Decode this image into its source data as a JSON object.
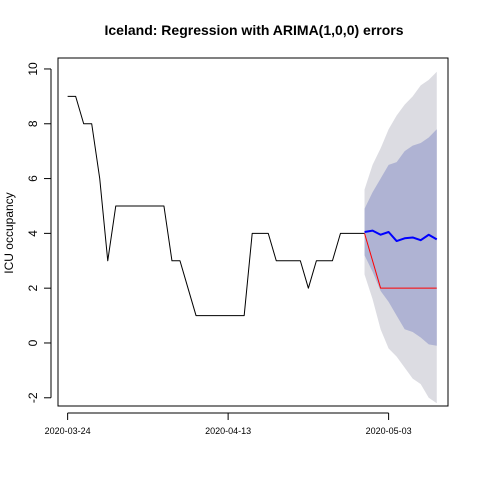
{
  "chart_data": {
    "type": "line",
    "title": "Iceland: Regression with ARIMA(1,0,0) errors",
    "xlabel": "",
    "ylabel": "ICU occupancy",
    "ylim": [
      -2.3,
      10.4
    ],
    "yticks": [
      -2,
      0,
      2,
      4,
      6,
      8,
      10
    ],
    "xlim": [
      "2020-03-24",
      "2020-05-09"
    ],
    "xtick_labels": [
      "2020-03-24",
      "2020-04-13",
      "2020-05-03"
    ],
    "grid": false,
    "legend": "none",
    "series": [
      {
        "role": "observed",
        "color": "#000000",
        "x": [
          "2020-03-24",
          "2020-03-25",
          "2020-03-26",
          "2020-03-27",
          "2020-03-28",
          "2020-03-29",
          "2020-03-30",
          "2020-03-31",
          "2020-04-01",
          "2020-04-02",
          "2020-04-03",
          "2020-04-04",
          "2020-04-05",
          "2020-04-06",
          "2020-04-07",
          "2020-04-08",
          "2020-04-09",
          "2020-04-10",
          "2020-04-11",
          "2020-04-12",
          "2020-04-13",
          "2020-04-14",
          "2020-04-15",
          "2020-04-16",
          "2020-04-17",
          "2020-04-18",
          "2020-04-19",
          "2020-04-20",
          "2020-04-21",
          "2020-04-22",
          "2020-04-23",
          "2020-04-24",
          "2020-04-25",
          "2020-04-26",
          "2020-04-27",
          "2020-04-28",
          "2020-04-29",
          "2020-04-30"
        ],
        "y": [
          9,
          9,
          8,
          8,
          6,
          3,
          5,
          5,
          5,
          5,
          5,
          5,
          5,
          3,
          3,
          2,
          1,
          1,
          1,
          1,
          1,
          1,
          1,
          4,
          4,
          4,
          3,
          3,
          3,
          3,
          2,
          3,
          3,
          3,
          4,
          4,
          4,
          4
        ]
      },
      {
        "role": "forecast",
        "color": "#0000ff",
        "x": [
          "2020-04-30",
          "2020-05-01",
          "2020-05-02",
          "2020-05-03",
          "2020-05-04",
          "2020-05-05",
          "2020-05-06",
          "2020-05-07",
          "2020-05-08",
          "2020-05-09"
        ],
        "y": [
          4.05,
          4.1,
          3.95,
          4.05,
          3.72,
          3.82,
          3.85,
          3.75,
          3.95,
          3.78
        ]
      },
      {
        "role": "actual",
        "color": "#ff0000",
        "x": [
          "2020-04-30",
          "2020-05-01",
          "2020-05-02",
          "2020-05-03",
          "2020-05-04",
          "2020-05-05",
          "2020-05-06",
          "2020-05-07",
          "2020-05-08",
          "2020-05-09"
        ],
        "y": [
          4,
          3,
          2,
          2,
          2,
          2,
          2,
          2,
          2,
          2
        ]
      }
    ],
    "intervals": {
      "x": [
        "2020-04-30",
        "2020-05-01",
        "2020-05-02",
        "2020-05-03",
        "2020-05-04",
        "2020-05-05",
        "2020-05-06",
        "2020-05-07",
        "2020-05-08",
        "2020-05-09"
      ],
      "lower80": [
        3.2,
        2.6,
        1.9,
        1.5,
        1.0,
        0.5,
        0.4,
        0.2,
        -0.05,
        -0.1
      ],
      "upper80": [
        4.9,
        5.5,
        6.0,
        6.5,
        6.6,
        7.0,
        7.2,
        7.3,
        7.5,
        7.8
      ],
      "lower95": [
        2.5,
        1.6,
        0.5,
        -0.2,
        -0.5,
        -0.9,
        -1.3,
        -1.5,
        -2.0,
        -2.2
      ],
      "upper95": [
        5.6,
        6.5,
        7.1,
        7.8,
        8.3,
        8.7,
        9.0,
        9.4,
        9.6,
        9.9
      ],
      "color80": "#afb3d3",
      "color95": "#dcdce2"
    }
  }
}
